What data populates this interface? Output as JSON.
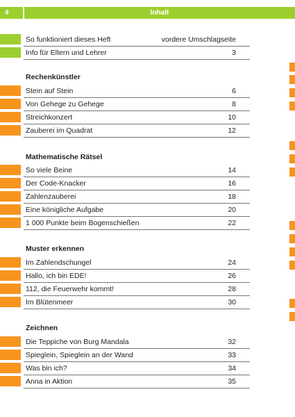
{
  "header": {
    "page_number": "4",
    "title": "Inhalt"
  },
  "colors": {
    "green": "#9ccf2e",
    "orange": "#f7941d"
  },
  "intro": [
    {
      "label": "So funktioniert dieses Heft",
      "page": "vordere Umschlagseite"
    },
    {
      "label": "Info für Eltern und Lehrer",
      "page": "3"
    }
  ],
  "sections": [
    {
      "title": "Rechenkünstler",
      "items": [
        {
          "label": "Stein auf Stein",
          "page": "6"
        },
        {
          "label": "Von Gehege zu Gehege",
          "page": "8"
        },
        {
          "label": "Streichkonzert",
          "page": "10"
        },
        {
          "label": "Zauberei im Quadrat",
          "page": "12"
        }
      ]
    },
    {
      "title": "Mathematische Rätsel",
      "items": [
        {
          "label": "So viele Beine",
          "page": "14"
        },
        {
          "label": "Der Code-Knacker",
          "page": "16"
        },
        {
          "label": "Zahlenzauberei",
          "page": "18"
        },
        {
          "label": "Eine königliche Aufgabe",
          "page": "20"
        },
        {
          "label": "1 000 Punkte beim Bogenschießen",
          "page": "22"
        }
      ]
    },
    {
      "title": "Muster erkennen",
      "items": [
        {
          "label": "Im Zahlendschungel",
          "page": "24"
        },
        {
          "label": "Hallo, ich bin EDE!",
          "page": "26"
        },
        {
          "label": "112, die Feuerwehr kommt!",
          "page": "28"
        },
        {
          "label": "Im Blütenmeer",
          "page": "30"
        }
      ]
    },
    {
      "title": "Zeichnen",
      "items": [
        {
          "label": "Die Teppiche von Burg Mandala",
          "page": "32"
        },
        {
          "label": "Spieglein, Spieglein an der Wand",
          "page": "33"
        },
        {
          "label": "Was bin ich?",
          "page": "34"
        },
        {
          "label": "Anna in Aktion",
          "page": "35"
        }
      ]
    }
  ]
}
